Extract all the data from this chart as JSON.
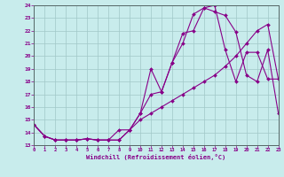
{
  "xlabel": "Windchill (Refroidissement éolien,°C)",
  "bg_color": "#c8ecec",
  "grid_color": "#a0c8c8",
  "line_color": "#880088",
  "xlim": [
    0,
    23
  ],
  "ylim": [
    13,
    24
  ],
  "xticks": [
    0,
    1,
    2,
    3,
    4,
    5,
    6,
    7,
    8,
    9,
    10,
    11,
    12,
    13,
    14,
    15,
    16,
    17,
    18,
    19,
    20,
    21,
    22,
    23
  ],
  "yticks": [
    13,
    14,
    15,
    16,
    17,
    18,
    19,
    20,
    21,
    22,
    23,
    24
  ],
  "line1_x": [
    0,
    1,
    2,
    3,
    4,
    5,
    6,
    7,
    8,
    9,
    10,
    11,
    12,
    13,
    14,
    15,
    16,
    17,
    18,
    19,
    20,
    21,
    22,
    23
  ],
  "line1_y": [
    14.6,
    13.7,
    13.4,
    13.4,
    13.4,
    13.5,
    13.4,
    13.4,
    13.4,
    14.2,
    15.5,
    19.0,
    17.2,
    19.5,
    21.0,
    23.3,
    23.8,
    24.0,
    20.5,
    18.0,
    20.3,
    20.3,
    18.2,
    18.2
  ],
  "line2_x": [
    0,
    1,
    2,
    3,
    4,
    5,
    6,
    7,
    8,
    9,
    10,
    11,
    12,
    13,
    14,
    15,
    16,
    17,
    18,
    19,
    20,
    21,
    22,
    23
  ],
  "line2_y": [
    14.6,
    13.7,
    13.4,
    13.4,
    13.4,
    13.5,
    13.4,
    13.4,
    13.4,
    14.2,
    15.5,
    17.0,
    17.2,
    19.5,
    21.8,
    22.0,
    23.8,
    23.5,
    23.2,
    21.9,
    18.5,
    18.0,
    20.5,
    15.5
  ],
  "line3_x": [
    0,
    1,
    2,
    3,
    4,
    5,
    6,
    7,
    8,
    9,
    10,
    11,
    12,
    13,
    14,
    15,
    16,
    17,
    18,
    19,
    20,
    21,
    22,
    23
  ],
  "line3_y": [
    14.6,
    13.7,
    13.4,
    13.4,
    13.4,
    13.5,
    13.4,
    13.4,
    14.2,
    14.2,
    15.0,
    15.5,
    16.0,
    16.5,
    17.0,
    17.5,
    18.0,
    18.5,
    19.2,
    20.0,
    21.0,
    22.0,
    22.5,
    18.2
  ]
}
